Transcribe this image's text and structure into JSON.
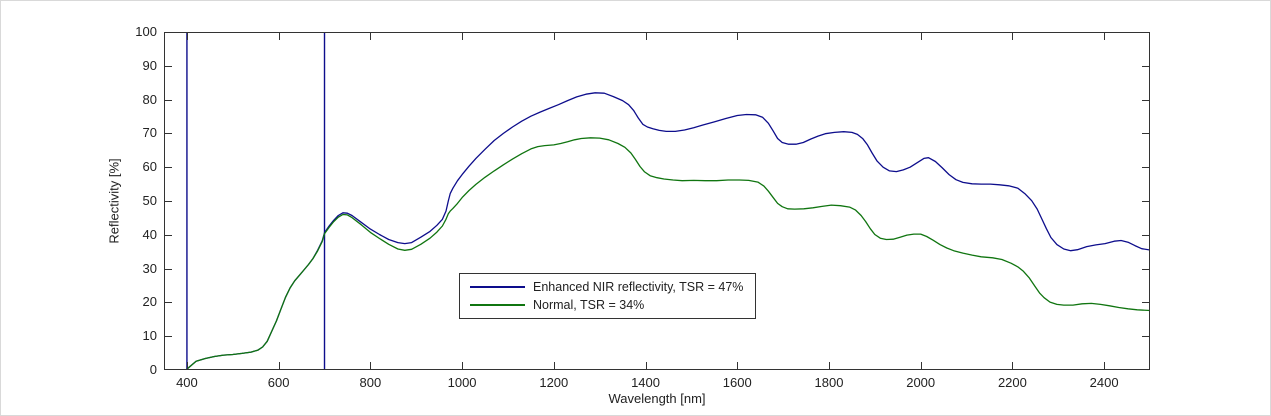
{
  "chart_data": {
    "type": "line",
    "title": "",
    "xlabel": "Wavelength [nm]",
    "ylabel": "Reflectivity [%]",
    "xlim": [
      350,
      2500
    ],
    "ylim": [
      0,
      100
    ],
    "xticks": [
      400,
      600,
      800,
      1000,
      1200,
      1400,
      1600,
      1800,
      2000,
      2200,
      2400
    ],
    "yticks": [
      0,
      10,
      20,
      30,
      40,
      50,
      60,
      70,
      80,
      90,
      100
    ],
    "grid": false,
    "frame_color": "#333333",
    "tick_color": "#333333",
    "legend_position": "inside-lower-center-left",
    "vlines": [
      {
        "x": 400,
        "color": "#0D0D8C",
        "width": 1.4
      },
      {
        "x": 700,
        "color": "#0D0D8C",
        "width": 1.4
      }
    ],
    "series": [
      {
        "name": "Enhanced NIR reflectivity, TSR = 47%",
        "color": "#0D0D8C",
        "points": [
          [
            400,
            0.3
          ],
          [
            420,
            2.6
          ],
          [
            440,
            3.4
          ],
          [
            460,
            4.0
          ],
          [
            480,
            4.4
          ],
          [
            500,
            4.6
          ],
          [
            520,
            4.9
          ],
          [
            540,
            5.3
          ],
          [
            555,
            5.9
          ],
          [
            565,
            6.8
          ],
          [
            575,
            8.5
          ],
          [
            585,
            11.5
          ],
          [
            595,
            14.5
          ],
          [
            605,
            18.0
          ],
          [
            615,
            21.5
          ],
          [
            625,
            24.3
          ],
          [
            635,
            26.4
          ],
          [
            645,
            28.0
          ],
          [
            655,
            29.6
          ],
          [
            665,
            31.2
          ],
          [
            675,
            33.0
          ],
          [
            685,
            35.4
          ],
          [
            695,
            38.2
          ],
          [
            700,
            40.6
          ],
          [
            710,
            42.6
          ],
          [
            720,
            44.3
          ],
          [
            730,
            45.7
          ],
          [
            740,
            46.5
          ],
          [
            750,
            46.4
          ],
          [
            760,
            45.7
          ],
          [
            780,
            43.7
          ],
          [
            800,
            41.7
          ],
          [
            820,
            40.1
          ],
          [
            840,
            38.6
          ],
          [
            860,
            37.7
          ],
          [
            875,
            37.4
          ],
          [
            890,
            37.7
          ],
          [
            910,
            39.3
          ],
          [
            930,
            41.0
          ],
          [
            945,
            42.8
          ],
          [
            957,
            44.6
          ],
          [
            965,
            47.0
          ],
          [
            970,
            50.0
          ],
          [
            974,
            52.2
          ],
          [
            980,
            53.8
          ],
          [
            990,
            56.0
          ],
          [
            1000,
            57.8
          ],
          [
            1015,
            60.3
          ],
          [
            1030,
            62.6
          ],
          [
            1050,
            65.3
          ],
          [
            1070,
            67.9
          ],
          [
            1090,
            70.0
          ],
          [
            1110,
            71.9
          ],
          [
            1130,
            73.6
          ],
          [
            1150,
            75.1
          ],
          [
            1170,
            76.3
          ],
          [
            1190,
            77.4
          ],
          [
            1210,
            78.5
          ],
          [
            1230,
            79.7
          ],
          [
            1250,
            80.8
          ],
          [
            1270,
            81.6
          ],
          [
            1290,
            82.0
          ],
          [
            1310,
            81.9
          ],
          [
            1330,
            80.9
          ],
          [
            1350,
            79.7
          ],
          [
            1363,
            78.5
          ],
          [
            1374,
            76.8
          ],
          [
            1384,
            74.6
          ],
          [
            1394,
            72.7
          ],
          [
            1404,
            71.9
          ],
          [
            1416,
            71.4
          ],
          [
            1430,
            70.9
          ],
          [
            1445,
            70.6
          ],
          [
            1465,
            70.6
          ],
          [
            1485,
            71.0
          ],
          [
            1505,
            71.7
          ],
          [
            1525,
            72.5
          ],
          [
            1550,
            73.4
          ],
          [
            1575,
            74.4
          ],
          [
            1600,
            75.3
          ],
          [
            1620,
            75.6
          ],
          [
            1640,
            75.5
          ],
          [
            1655,
            74.8
          ],
          [
            1668,
            73.0
          ],
          [
            1678,
            70.8
          ],
          [
            1688,
            68.5
          ],
          [
            1698,
            67.3
          ],
          [
            1712,
            66.8
          ],
          [
            1728,
            66.8
          ],
          [
            1744,
            67.3
          ],
          [
            1760,
            68.3
          ],
          [
            1776,
            69.2
          ],
          [
            1792,
            69.9
          ],
          [
            1812,
            70.3
          ],
          [
            1832,
            70.5
          ],
          [
            1850,
            70.3
          ],
          [
            1862,
            69.7
          ],
          [
            1874,
            68.4
          ],
          [
            1884,
            66.6
          ],
          [
            1894,
            64.2
          ],
          [
            1905,
            61.8
          ],
          [
            1918,
            60.0
          ],
          [
            1932,
            58.9
          ],
          [
            1947,
            58.7
          ],
          [
            1962,
            59.2
          ],
          [
            1977,
            60.0
          ],
          [
            1992,
            61.3
          ],
          [
            2007,
            62.6
          ],
          [
            2017,
            62.8
          ],
          [
            2032,
            61.7
          ],
          [
            2047,
            59.8
          ],
          [
            2062,
            57.8
          ],
          [
            2077,
            56.3
          ],
          [
            2092,
            55.5
          ],
          [
            2112,
            55.1
          ],
          [
            2132,
            55.0
          ],
          [
            2152,
            55.0
          ],
          [
            2172,
            54.8
          ],
          [
            2192,
            54.5
          ],
          [
            2212,
            53.8
          ],
          [
            2227,
            52.2
          ],
          [
            2242,
            50.1
          ],
          [
            2254,
            47.6
          ],
          [
            2264,
            44.7
          ],
          [
            2274,
            41.8
          ],
          [
            2284,
            39.2
          ],
          [
            2297,
            37.1
          ],
          [
            2312,
            35.8
          ],
          [
            2327,
            35.3
          ],
          [
            2342,
            35.6
          ],
          [
            2362,
            36.5
          ],
          [
            2382,
            37.0
          ],
          [
            2402,
            37.4
          ],
          [
            2422,
            38.1
          ],
          [
            2437,
            38.3
          ],
          [
            2452,
            37.8
          ],
          [
            2467,
            36.8
          ],
          [
            2482,
            35.9
          ],
          [
            2500,
            35.5
          ]
        ]
      },
      {
        "name": "Normal, TSR = 34%",
        "color": "#107510",
        "points": [
          [
            400,
            0.2
          ],
          [
            420,
            2.6
          ],
          [
            440,
            3.4
          ],
          [
            460,
            4.0
          ],
          [
            480,
            4.4
          ],
          [
            500,
            4.6
          ],
          [
            520,
            4.9
          ],
          [
            540,
            5.3
          ],
          [
            555,
            5.9
          ],
          [
            565,
            6.8
          ],
          [
            575,
            8.5
          ],
          [
            585,
            11.5
          ],
          [
            595,
            14.5
          ],
          [
            605,
            18.0
          ],
          [
            615,
            21.5
          ],
          [
            625,
            24.3
          ],
          [
            635,
            26.4
          ],
          [
            645,
            28.0
          ],
          [
            655,
            29.6
          ],
          [
            665,
            31.2
          ],
          [
            675,
            33.0
          ],
          [
            685,
            35.2
          ],
          [
            695,
            38.0
          ],
          [
            700,
            40.3
          ],
          [
            710,
            42.2
          ],
          [
            720,
            43.9
          ],
          [
            730,
            45.2
          ],
          [
            740,
            46.0
          ],
          [
            750,
            45.9
          ],
          [
            760,
            45.1
          ],
          [
            780,
            43.0
          ],
          [
            800,
            40.7
          ],
          [
            820,
            38.9
          ],
          [
            840,
            37.2
          ],
          [
            860,
            35.8
          ],
          [
            875,
            35.4
          ],
          [
            890,
            35.7
          ],
          [
            910,
            37.2
          ],
          [
            930,
            39.0
          ],
          [
            945,
            40.8
          ],
          [
            957,
            42.6
          ],
          [
            965,
            44.6
          ],
          [
            970,
            46.2
          ],
          [
            974,
            47.0
          ],
          [
            980,
            47.8
          ],
          [
            990,
            49.3
          ],
          [
            1000,
            51.0
          ],
          [
            1015,
            53.1
          ],
          [
            1030,
            54.9
          ],
          [
            1050,
            57.0
          ],
          [
            1070,
            58.9
          ],
          [
            1090,
            60.7
          ],
          [
            1110,
            62.4
          ],
          [
            1130,
            64.0
          ],
          [
            1150,
            65.4
          ],
          [
            1165,
            66.1
          ],
          [
            1180,
            66.4
          ],
          [
            1200,
            66.6
          ],
          [
            1215,
            67.0
          ],
          [
            1230,
            67.5
          ],
          [
            1245,
            68.1
          ],
          [
            1260,
            68.5
          ],
          [
            1280,
            68.7
          ],
          [
            1300,
            68.6
          ],
          [
            1320,
            68.1
          ],
          [
            1340,
            67.0
          ],
          [
            1355,
            65.9
          ],
          [
            1368,
            64.2
          ],
          [
            1378,
            62.3
          ],
          [
            1388,
            60.2
          ],
          [
            1398,
            58.6
          ],
          [
            1410,
            57.5
          ],
          [
            1425,
            56.9
          ],
          [
            1440,
            56.5
          ],
          [
            1460,
            56.2
          ],
          [
            1480,
            56.0
          ],
          [
            1505,
            56.1
          ],
          [
            1530,
            56.0
          ],
          [
            1555,
            56.0
          ],
          [
            1580,
            56.2
          ],
          [
            1605,
            56.2
          ],
          [
            1625,
            56.1
          ],
          [
            1645,
            55.6
          ],
          [
            1658,
            54.4
          ],
          [
            1668,
            52.9
          ],
          [
            1678,
            51.1
          ],
          [
            1688,
            49.3
          ],
          [
            1698,
            48.3
          ],
          [
            1710,
            47.7
          ],
          [
            1725,
            47.6
          ],
          [
            1745,
            47.7
          ],
          [
            1765,
            48.0
          ],
          [
            1785,
            48.4
          ],
          [
            1805,
            48.8
          ],
          [
            1825,
            48.6
          ],
          [
            1845,
            48.2
          ],
          [
            1858,
            47.3
          ],
          [
            1870,
            45.7
          ],
          [
            1880,
            43.9
          ],
          [
            1890,
            41.8
          ],
          [
            1900,
            40.1
          ],
          [
            1912,
            39.0
          ],
          [
            1925,
            38.6
          ],
          [
            1940,
            38.7
          ],
          [
            1955,
            39.3
          ],
          [
            1970,
            39.9
          ],
          [
            1985,
            40.2
          ],
          [
            2000,
            40.2
          ],
          [
            2013,
            39.5
          ],
          [
            2027,
            38.4
          ],
          [
            2042,
            37.1
          ],
          [
            2057,
            36.1
          ],
          [
            2072,
            35.3
          ],
          [
            2092,
            34.6
          ],
          [
            2112,
            34.0
          ],
          [
            2132,
            33.5
          ],
          [
            2157,
            33.2
          ],
          [
            2177,
            32.7
          ],
          [
            2197,
            31.6
          ],
          [
            2212,
            30.5
          ],
          [
            2224,
            29.2
          ],
          [
            2237,
            27.2
          ],
          [
            2249,
            24.8
          ],
          [
            2259,
            22.8
          ],
          [
            2269,
            21.4
          ],
          [
            2282,
            20.1
          ],
          [
            2297,
            19.4
          ],
          [
            2312,
            19.2
          ],
          [
            2332,
            19.2
          ],
          [
            2352,
            19.6
          ],
          [
            2372,
            19.7
          ],
          [
            2392,
            19.4
          ],
          [
            2412,
            19.0
          ],
          [
            2432,
            18.5
          ],
          [
            2452,
            18.1
          ],
          [
            2472,
            17.8
          ],
          [
            2500,
            17.6
          ]
        ]
      }
    ],
    "legend": {
      "entries": [
        {
          "label": "Enhanced NIR reflectivity, TSR = 47%",
          "color": "#0D0D8C"
        },
        {
          "label": "Normal, TSR = 34%",
          "color": "#107510"
        }
      ]
    }
  }
}
